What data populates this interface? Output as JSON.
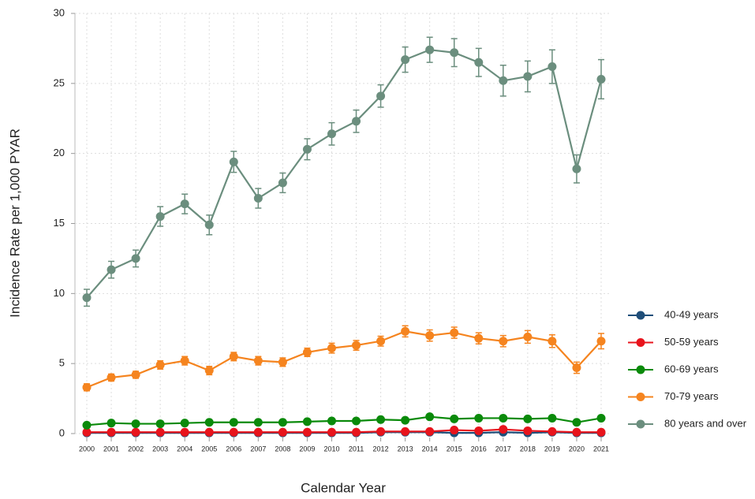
{
  "chart_data": {
    "type": "line",
    "y_label": "Incidence Rate per 1,000 PYAR",
    "x_label": "Calendar Year",
    "categories": [
      "2000",
      "2001",
      "2002",
      "2003",
      "2004",
      "2005",
      "2006",
      "2007",
      "2008",
      "2009",
      "2010",
      "2011",
      "2012",
      "2013",
      "2014",
      "2015",
      "2016",
      "2017",
      "2018",
      "2019",
      "2020",
      "2021"
    ],
    "ylim": [
      0,
      30
    ],
    "yticks": [
      0,
      5,
      10,
      15,
      20,
      25,
      30
    ],
    "grid": true,
    "legend": "right",
    "series": [
      {
        "name": "40-49 years",
        "color": "#1f4e79",
        "values": [
          0.05,
          0.05,
          0.05,
          0.05,
          0.05,
          0.05,
          0.05,
          0.05,
          0.05,
          0.05,
          0.05,
          0.05,
          0.1,
          0.1,
          0.1,
          0.05,
          0.05,
          0.1,
          0.05,
          0.1,
          0.05,
          0.05
        ]
      },
      {
        "name": "50-59 years",
        "color": "#e8141c",
        "values": [
          0.1,
          0.1,
          0.1,
          0.1,
          0.1,
          0.1,
          0.1,
          0.1,
          0.1,
          0.1,
          0.1,
          0.1,
          0.15,
          0.15,
          0.15,
          0.25,
          0.2,
          0.3,
          0.2,
          0.15,
          0.1,
          0.1
        ]
      },
      {
        "name": "60-69 years",
        "color": "#0a8a0a",
        "values": [
          0.6,
          0.75,
          0.7,
          0.7,
          0.75,
          0.8,
          0.8,
          0.8,
          0.8,
          0.85,
          0.9,
          0.9,
          1.0,
          0.95,
          1.2,
          1.05,
          1.1,
          1.1,
          1.05,
          1.1,
          0.8,
          1.1
        ]
      },
      {
        "name": "70-79 years",
        "color": "#f5841f",
        "values": [
          3.3,
          4.0,
          4.2,
          4.9,
          5.2,
          4.5,
          5.5,
          5.2,
          5.1,
          5.8,
          6.1,
          6.3,
          6.6,
          7.3,
          7.0,
          7.2,
          6.8,
          6.6,
          6.9,
          6.6,
          4.7,
          6.6
        ],
        "errors": [
          0.25,
          0.25,
          0.25,
          0.3,
          0.3,
          0.3,
          0.3,
          0.3,
          0.3,
          0.3,
          0.35,
          0.35,
          0.35,
          0.4,
          0.4,
          0.4,
          0.4,
          0.4,
          0.45,
          0.45,
          0.4,
          0.55
        ]
      },
      {
        "name": "80 years and over",
        "color": "#6b8e7e",
        "values": [
          9.7,
          11.7,
          12.5,
          15.5,
          16.4,
          14.9,
          19.4,
          16.8,
          17.9,
          20.3,
          21.4,
          22.3,
          24.1,
          26.7,
          27.4,
          27.2,
          26.5,
          25.2,
          25.5,
          26.2,
          18.9,
          25.3
        ],
        "errors": [
          0.6,
          0.6,
          0.6,
          0.7,
          0.7,
          0.7,
          0.75,
          0.7,
          0.7,
          0.75,
          0.8,
          0.8,
          0.8,
          0.9,
          0.9,
          1.0,
          1.0,
          1.1,
          1.1,
          1.2,
          1.0,
          1.4
        ]
      }
    ]
  }
}
